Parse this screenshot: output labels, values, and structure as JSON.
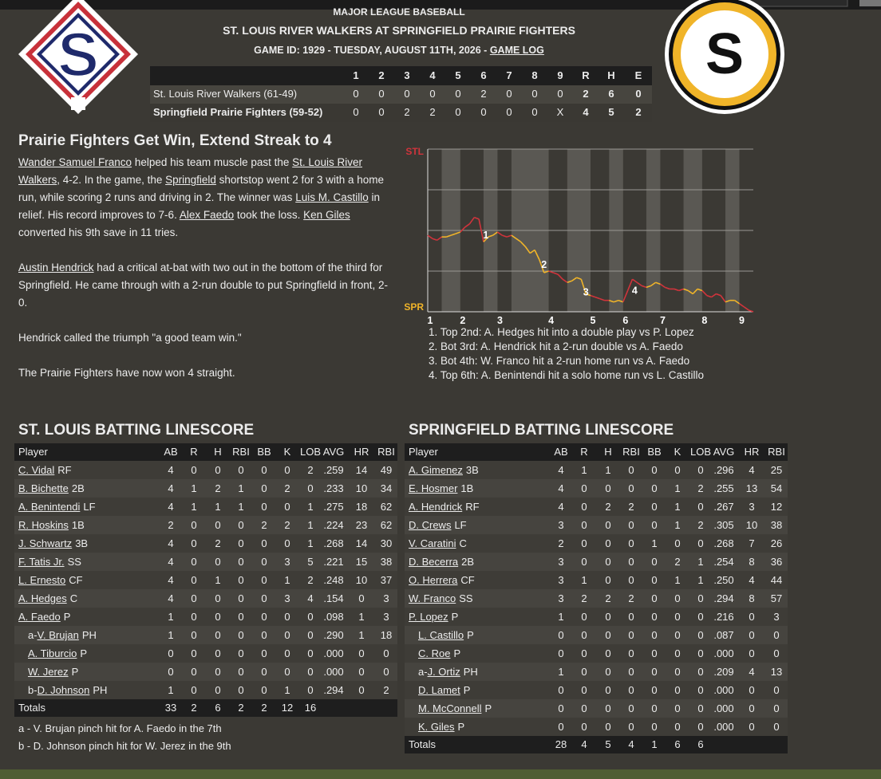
{
  "header": {
    "league": "MAJOR LEAGUE BASEBALL",
    "title": "ST. LOUIS RIVER WALKERS AT SPRINGFIELD PRAIRIE FIGHTERS",
    "game_info": "GAME ID: 1929 - TUESDAY, AUGUST 11TH, 2026 - ",
    "game_log": "GAME LOG"
  },
  "logos": [
    "S",
    "S"
  ],
  "linescore": {
    "columns": [
      "1",
      "2",
      "3",
      "4",
      "5",
      "6",
      "7",
      "8",
      "9",
      "R",
      "H",
      "E"
    ],
    "rows": [
      {
        "team": "St. Louis River Walkers (61-49)",
        "cells": [
          "0",
          "0",
          "0",
          "0",
          "0",
          "2",
          "0",
          "0",
          "0",
          "2",
          "6",
          "0"
        ]
      },
      {
        "team": "Springfield Prairie Fighters (59-52)",
        "cells": [
          "0",
          "0",
          "2",
          "2",
          "0",
          "0",
          "0",
          "0",
          "X",
          "4",
          "5",
          "2"
        ]
      }
    ]
  },
  "story": {
    "headline": "Prairie Fighters Get Win, Extend Streak to 4",
    "paragraphs": [
      [
        {
          "link": "Wander Samuel Franco"
        },
        {
          "text": " helped his team muscle past the "
        },
        {
          "link": "St. Louis River Walkers"
        },
        {
          "text": ", 4-2. In the game, the "
        },
        {
          "link": "Springfield"
        },
        {
          "text": " shortstop went 2 for 3 with a home run, while scoring 2 runs and driving in 2. The winner was "
        },
        {
          "link": "Luis M. Castillo"
        },
        {
          "text": " in relief. His record improves to 7-6. "
        },
        {
          "link": "Alex Faedo"
        },
        {
          "text": " took the loss. "
        },
        {
          "link": "Ken Giles"
        },
        {
          "text": " converted his 9th save in 11 tries."
        }
      ],
      [
        {
          "link": "Austin Hendrick"
        },
        {
          "text": " had a critical at-bat with two out in the bottom of the third for Springfield. He came through with a 2-run double to put Springfield in front, 2-0."
        }
      ],
      [
        {
          "text": "Hendrick called the triumph \"a good team win.\""
        }
      ],
      [
        {
          "text": "The Prairie Fighters have now won 4 straight."
        }
      ]
    ]
  },
  "chart_data": {
    "type": "line",
    "x": [
      0,
      1,
      2,
      3,
      4,
      5,
      6,
      7,
      8,
      9,
      10,
      11,
      12,
      13,
      14,
      15,
      16,
      17,
      18,
      19,
      20,
      21,
      22,
      23,
      24,
      25,
      26,
      27,
      28,
      29,
      30,
      31,
      32,
      33,
      34,
      35,
      36,
      37,
      38,
      39,
      40,
      41,
      42,
      43,
      44,
      45,
      46,
      47,
      48,
      49,
      50,
      51,
      52,
      53,
      54,
      55,
      56,
      57,
      58,
      59,
      60,
      61,
      62,
      63,
      64,
      65,
      66,
      67,
      68,
      69,
      70
    ],
    "values": [
      47,
      45,
      44,
      46,
      46,
      47,
      48,
      49,
      52,
      54,
      58,
      57,
      43,
      46,
      47,
      49,
      47,
      46,
      47,
      45,
      43,
      40,
      36,
      38,
      32,
      24,
      25,
      24,
      23,
      20,
      18,
      19,
      21,
      20,
      11,
      10,
      9,
      8,
      7,
      7,
      6,
      7,
      6,
      13,
      20,
      18,
      16,
      15,
      16,
      18,
      17,
      15,
      14,
      14,
      13,
      14,
      13,
      11,
      14,
      13,
      10,
      9,
      11,
      10,
      6,
      7,
      7,
      5,
      3,
      1,
      0
    ],
    "xlim": [
      0,
      70
    ],
    "ylim": [
      0,
      100
    ],
    "yticks": [
      {
        "value": 100,
        "label": "STL",
        "color": "#d0343c"
      },
      {
        "value": 75,
        "label": null
      },
      {
        "value": 50,
        "label": null
      },
      {
        "value": 25,
        "label": null
      },
      {
        "value": 0,
        "label": "SPR",
        "color": "#f0b429"
      }
    ],
    "xticks": [
      {
        "value": 0,
        "label": "1"
      },
      {
        "value": 7,
        "label": "2"
      },
      {
        "value": 15,
        "label": "3"
      },
      {
        "value": 26,
        "label": "4"
      },
      {
        "value": 35,
        "label": "5"
      },
      {
        "value": 42,
        "label": "6"
      },
      {
        "value": 50,
        "label": "7"
      },
      {
        "value": 59,
        "label": "8"
      },
      {
        "value": 67,
        "label": "9"
      }
    ],
    "xbands": [
      [
        3,
        7
      ],
      [
        12,
        15
      ],
      [
        18,
        26
      ],
      [
        30,
        35
      ],
      [
        39,
        42
      ],
      [
        47,
        50
      ],
      [
        55,
        59
      ],
      [
        64,
        67
      ]
    ],
    "line_colors": [
      "#d0343c",
      "#f0b429"
    ],
    "annotations": [
      {
        "label": "1",
        "x": 12.5,
        "y": 47
      },
      {
        "label": "2",
        "x": 25,
        "y": 29
      },
      {
        "label": "3",
        "x": 34,
        "y": 12
      },
      {
        "label": "4",
        "x": 44.5,
        "y": 13
      }
    ],
    "notes": [
      "1. Top 2nd: A. Hedges hit into a double play vs P. Lopez",
      "2. Bot 3rd: A. Hendrick hit a 2-run double vs A. Faedo",
      "3. Bot 4th: W. Franco hit a 2-run home run vs A. Faedo",
      "4. Top 6th: A. Benintendi hit a solo home run vs L. Castillo"
    ]
  },
  "tables": [
    {
      "title": "ST. LOUIS BATTING LINESCORE",
      "columns": [
        "Player",
        "AB",
        "R",
        "H",
        "RBI",
        "BB",
        "K",
        "LOB",
        "AVG",
        "HR",
        "RBI"
      ],
      "rows": [
        {
          "player": "C. Vidal",
          "pos": "RF",
          "stats": [
            "4",
            "0",
            "0",
            "0",
            "0",
            "0",
            "2",
            ".259",
            "14",
            "49"
          ]
        },
        {
          "player": "B. Bichette",
          "pos": "2B",
          "stats": [
            "4",
            "1",
            "2",
            "1",
            "0",
            "2",
            "0",
            ".233",
            "10",
            "34"
          ]
        },
        {
          "player": "A. Benintendi",
          "pos": "LF",
          "stats": [
            "4",
            "1",
            "1",
            "1",
            "0",
            "0",
            "1",
            ".275",
            "18",
            "62"
          ]
        },
        {
          "player": "R. Hoskins",
          "pos": "1B",
          "stats": [
            "2",
            "0",
            "0",
            "0",
            "2",
            "2",
            "1",
            ".224",
            "23",
            "62"
          ]
        },
        {
          "player": "J. Schwartz",
          "pos": "3B",
          "stats": [
            "4",
            "0",
            "2",
            "0",
            "0",
            "0",
            "1",
            ".268",
            "14",
            "30"
          ]
        },
        {
          "player": "F. Tatis Jr.",
          "pos": "SS",
          "stats": [
            "4",
            "0",
            "0",
            "0",
            "0",
            "3",
            "5",
            ".221",
            "15",
            "38"
          ]
        },
        {
          "player": "L. Ernesto",
          "pos": "CF",
          "stats": [
            "4",
            "0",
            "1",
            "0",
            "0",
            "1",
            "2",
            ".248",
            "10",
            "37"
          ]
        },
        {
          "player": "A. Hedges",
          "pos": "C",
          "stats": [
            "4",
            "0",
            "0",
            "0",
            "0",
            "3",
            "4",
            ".154",
            "0",
            "3"
          ]
        },
        {
          "player": "A. Faedo",
          "pos": "P",
          "stats": [
            "1",
            "0",
            "0",
            "0",
            "0",
            "0",
            "0",
            ".098",
            "1",
            "3"
          ]
        },
        {
          "prefix": "a-",
          "player": "V. Brujan",
          "pos": "PH",
          "sub": true,
          "stats": [
            "1",
            "0",
            "0",
            "0",
            "0",
            "0",
            "0",
            ".290",
            "1",
            "18"
          ]
        },
        {
          "player": "A. Tiburcio",
          "pos": "P",
          "sub": true,
          "stats": [
            "0",
            "0",
            "0",
            "0",
            "0",
            "0",
            "0",
            ".000",
            "0",
            "0"
          ]
        },
        {
          "player": "W. Jerez",
          "pos": "P",
          "sub": true,
          "stats": [
            "0",
            "0",
            "0",
            "0",
            "0",
            "0",
            "0",
            ".000",
            "0",
            "0"
          ]
        },
        {
          "prefix": "b-",
          "player": "D. Johnson",
          "pos": "PH",
          "sub": true,
          "stats": [
            "1",
            "0",
            "0",
            "0",
            "0",
            "1",
            "0",
            ".294",
            "0",
            "2"
          ]
        }
      ],
      "totals": {
        "label": "Totals",
        "stats": [
          "33",
          "2",
          "6",
          "2",
          "2",
          "12",
          "16"
        ]
      },
      "footnotes": [
        "a - V. Brujan pinch hit for A. Faedo in the 7th",
        "b - D. Johnson pinch hit for W. Jerez in the 9th"
      ]
    },
    {
      "title": "SPRINGFIELD BATTING LINESCORE",
      "columns": [
        "Player",
        "AB",
        "R",
        "H",
        "RBI",
        "BB",
        "K",
        "LOB",
        "AVG",
        "HR",
        "RBI"
      ],
      "rows": [
        {
          "player": "A. Gimenez",
          "pos": "3B",
          "stats": [
            "4",
            "1",
            "1",
            "0",
            "0",
            "0",
            "0",
            ".296",
            "4",
            "25"
          ]
        },
        {
          "player": "E. Hosmer",
          "pos": "1B",
          "stats": [
            "4",
            "0",
            "0",
            "0",
            "0",
            "1",
            "2",
            ".255",
            "13",
            "54"
          ]
        },
        {
          "player": "A. Hendrick",
          "pos": "RF",
          "stats": [
            "4",
            "0",
            "2",
            "2",
            "0",
            "1",
            "0",
            ".267",
            "3",
            "12"
          ]
        },
        {
          "player": "D. Crews",
          "pos": "LF",
          "stats": [
            "3",
            "0",
            "0",
            "0",
            "0",
            "1",
            "2",
            ".305",
            "10",
            "38"
          ]
        },
        {
          "player": "V. Caratini",
          "pos": "C",
          "stats": [
            "2",
            "0",
            "0",
            "0",
            "1",
            "0",
            "0",
            ".268",
            "7",
            "26"
          ]
        },
        {
          "player": "D. Becerra",
          "pos": "2B",
          "stats": [
            "3",
            "0",
            "0",
            "0",
            "0",
            "2",
            "1",
            ".254",
            "8",
            "36"
          ]
        },
        {
          "player": "O. Herrera",
          "pos": "CF",
          "stats": [
            "3",
            "1",
            "0",
            "0",
            "0",
            "1",
            "1",
            ".250",
            "4",
            "44"
          ]
        },
        {
          "player": "W. Franco",
          "pos": "SS",
          "stats": [
            "3",
            "2",
            "2",
            "2",
            "0",
            "0",
            "0",
            ".294",
            "8",
            "57"
          ]
        },
        {
          "player": "P. Lopez",
          "pos": "P",
          "stats": [
            "1",
            "0",
            "0",
            "0",
            "0",
            "0",
            "0",
            ".216",
            "0",
            "3"
          ]
        },
        {
          "player": "L. Castillo",
          "pos": "P",
          "sub": true,
          "stats": [
            "0",
            "0",
            "0",
            "0",
            "0",
            "0",
            "0",
            ".087",
            "0",
            "0"
          ]
        },
        {
          "player": "C. Roe",
          "pos": "P",
          "sub": true,
          "stats": [
            "0",
            "0",
            "0",
            "0",
            "0",
            "0",
            "0",
            ".000",
            "0",
            "0"
          ]
        },
        {
          "prefix": "a-",
          "player": "J. Ortiz",
          "pos": "PH",
          "sub": true,
          "stats": [
            "1",
            "0",
            "0",
            "0",
            "0",
            "0",
            "0",
            ".209",
            "4",
            "13"
          ]
        },
        {
          "player": "D. Lamet",
          "pos": "P",
          "sub": true,
          "stats": [
            "0",
            "0",
            "0",
            "0",
            "0",
            "0",
            "0",
            ".000",
            "0",
            "0"
          ]
        },
        {
          "player": "M. McConnell",
          "pos": "P",
          "sub": true,
          "stats": [
            "0",
            "0",
            "0",
            "0",
            "0",
            "0",
            "0",
            ".000",
            "0",
            "0"
          ]
        },
        {
          "player": "K. Giles",
          "pos": "P",
          "sub": true,
          "stats": [
            "0",
            "0",
            "0",
            "0",
            "0",
            "0",
            "0",
            ".000",
            "0",
            "0"
          ]
        }
      ],
      "totals": {
        "label": "Totals",
        "stats": [
          "28",
          "4",
          "5",
          "4",
          "1",
          "6",
          "6"
        ]
      }
    }
  ]
}
